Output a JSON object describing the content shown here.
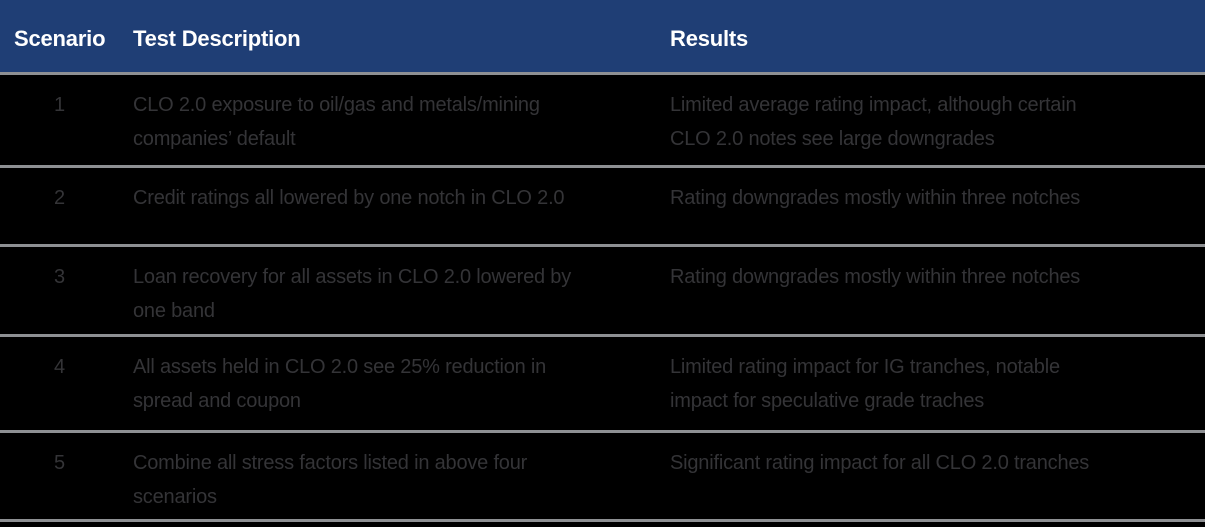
{
  "colors": {
    "header_background": "#1f3e75",
    "header_text": "#ffffff",
    "body_background": "#000000",
    "body_text": "#343437",
    "separator_line": "#8e9093"
  },
  "table": {
    "columns": [
      {
        "label": "Scenario"
      },
      {
        "label": "Test Description"
      },
      {
        "label": "Results"
      }
    ],
    "rows": [
      {
        "scenario": "1",
        "test_description": "CLO 2.0 exposure to oil/gas and metals/mining\ncompanies’ default",
        "results": "Limited average rating impact, although certain\nCLO 2.0 notes see large downgrades"
      },
      {
        "scenario": "2",
        "test_description": "Credit ratings all lowered by one notch in CLO 2.0",
        "results": "Rating downgrades mostly within three notches"
      },
      {
        "scenario": "3",
        "test_description": "Loan recovery for all assets in CLO 2.0 lowered by\none band",
        "results": "Rating downgrades mostly within three notches"
      },
      {
        "scenario": "4",
        "test_description": "All assets held in CLO 2.0 see 25% reduction in\nspread and coupon",
        "results": "Limited rating impact for IG tranches, notable\nimpact for speculative grade traches"
      },
      {
        "scenario": "5",
        "test_description": "Combine all stress factors listed in above four\nscenarios",
        "results": "Significant rating impact for all CLO 2.0 tranches"
      }
    ]
  }
}
